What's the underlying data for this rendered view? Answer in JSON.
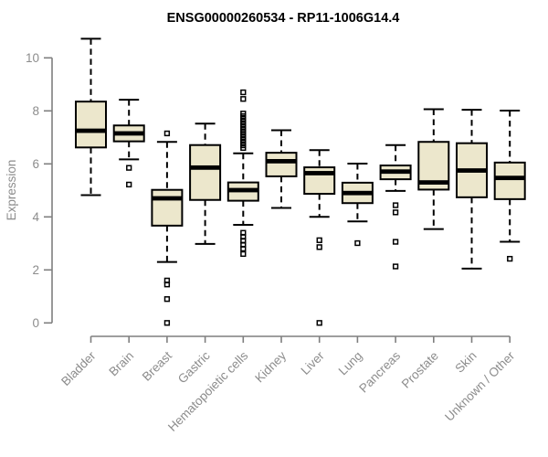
{
  "title": "ENSG00000260534 - RP11-1006G14.4",
  "colors": {
    "box_fill": "#ece7cc",
    "box_border": "#000000",
    "median": "#000000",
    "whisker": "#000000",
    "axis_line": "#7f7f7f",
    "axis_text": "#8c8c8c",
    "title_text": "#000000",
    "background": "#ffffff"
  },
  "chart_data": {
    "type": "boxplot",
    "title": "ENSG00000260534 - RP11-1006G14.4",
    "xlabel": "",
    "ylabel": "Expression",
    "ylim": [
      0,
      10
    ],
    "yticks": [
      0,
      2,
      4,
      6,
      8,
      10
    ],
    "grid": "off",
    "categories": [
      "Bladder",
      "Brain",
      "Breast",
      "Gastric",
      "Hematopoietic cells",
      "Kidney",
      "Liver",
      "Lung",
      "Pancreas",
      "Prostate",
      "Skin",
      "Unknown / Other"
    ],
    "series": [
      {
        "name": "Bladder",
        "whisker_low": 4.82,
        "q1": 6.62,
        "median": 7.25,
        "q3": 8.35,
        "whisker_high": 10.72,
        "outliers": []
      },
      {
        "name": "Brain",
        "whisker_low": 6.17,
        "q1": 6.85,
        "median": 7.15,
        "q3": 7.45,
        "whisker_high": 8.42,
        "outliers": [
          5.85,
          5.22
        ]
      },
      {
        "name": "Breast",
        "whisker_low": 2.3,
        "q1": 3.67,
        "median": 4.7,
        "q3": 5.02,
        "whisker_high": 6.83,
        "outliers": [
          7.15,
          1.6,
          1.45,
          0.9,
          0.0
        ]
      },
      {
        "name": "Gastric",
        "whisker_low": 2.98,
        "q1": 4.64,
        "median": 5.86,
        "q3": 6.71,
        "whisker_high": 7.52,
        "outliers": []
      },
      {
        "name": "Hematopoietic cells",
        "whisker_low": 3.7,
        "q1": 4.61,
        "median": 5.01,
        "q3": 5.3,
        "whisker_high": 6.4,
        "outliers": [
          8.7,
          8.45,
          7.9,
          7.8,
          7.7,
          7.6,
          7.5,
          7.4,
          7.3,
          7.2,
          7.1,
          7.0,
          6.9,
          6.8,
          6.7,
          6.6,
          3.4,
          3.25,
          3.1,
          2.95,
          2.8,
          2.6
        ]
      },
      {
        "name": "Kidney",
        "whisker_low": 4.34,
        "q1": 5.53,
        "median": 6.1,
        "q3": 6.42,
        "whisker_high": 7.27,
        "outliers": []
      },
      {
        "name": "Liver",
        "whisker_low": 4.0,
        "q1": 4.87,
        "median": 5.65,
        "q3": 5.87,
        "whisker_high": 6.52,
        "outliers": [
          3.12,
          2.86,
          0.0
        ]
      },
      {
        "name": "Lung",
        "whisker_low": 3.83,
        "q1": 4.52,
        "median": 4.9,
        "q3": 5.29,
        "whisker_high": 6.01,
        "outliers": [
          3.01
        ]
      },
      {
        "name": "Pancreas",
        "whisker_low": 4.98,
        "q1": 5.42,
        "median": 5.71,
        "q3": 5.94,
        "whisker_high": 6.71,
        "outliers": [
          4.44,
          4.17,
          3.06,
          2.13
        ]
      },
      {
        "name": "Prostate",
        "whisker_low": 3.54,
        "q1": 5.03,
        "median": 5.3,
        "q3": 6.83,
        "whisker_high": 8.06,
        "outliers": []
      },
      {
        "name": "Skin",
        "whisker_low": 2.05,
        "q1": 4.74,
        "median": 5.75,
        "q3": 6.78,
        "whisker_high": 8.04,
        "outliers": []
      },
      {
        "name": "Unknown / Other",
        "whisker_low": 3.06,
        "q1": 4.67,
        "median": 5.47,
        "q3": 6.05,
        "whisker_high": 8.01,
        "outliers": [
          2.42
        ]
      }
    ],
    "legend": "none"
  }
}
